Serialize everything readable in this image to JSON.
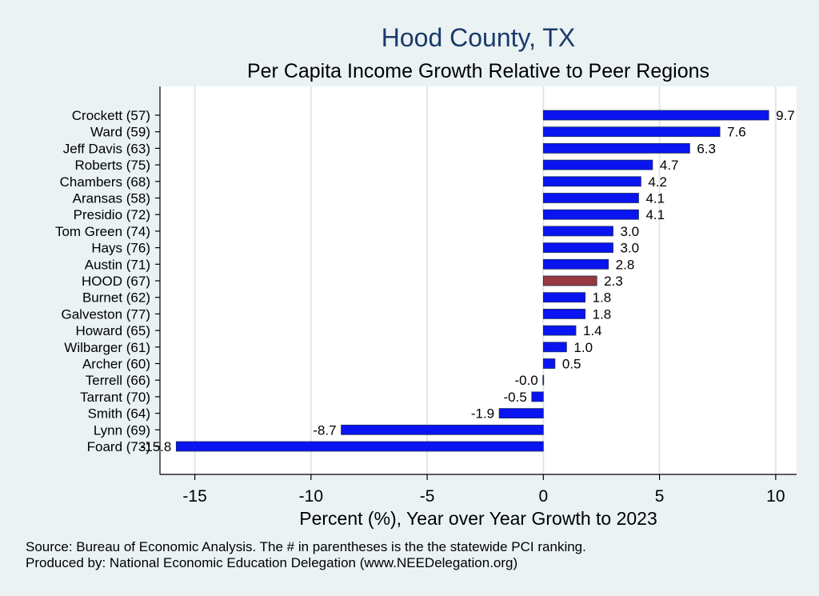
{
  "chart_data": {
    "type": "bar",
    "orientation": "horizontal",
    "title": "Hood County, TX",
    "subtitle": "Per Capita Income Growth Relative to Peer Regions",
    "xlabel": "Percent (%), Year over Year Growth to 2023",
    "xlim": [
      -16.5,
      10.9
    ],
    "xticks": [
      -15,
      -10,
      -5,
      0,
      5,
      10
    ],
    "xtick_labels": [
      "-15",
      "-10",
      "-5",
      "0",
      "5",
      "10"
    ],
    "grid": true,
    "categories": [
      "Crockett (57)",
      "Ward (59)",
      "Jeff Davis (63)",
      "Roberts (75)",
      "Chambers (68)",
      "Aransas (58)",
      "Presidio (72)",
      "Tom Green (74)",
      "Hays (76)",
      "Austin (71)",
      "HOOD (67)",
      "Burnet (62)",
      "Galveston (77)",
      "Howard (65)",
      "Wilbarger (61)",
      "Archer (60)",
      "Terrell (66)",
      "Tarrant (70)",
      "Smith (64)",
      "Lynn (69)",
      "Foard (73)"
    ],
    "values": [
      9.7,
      7.6,
      6.3,
      4.7,
      4.2,
      4.1,
      4.1,
      3.0,
      3.0,
      2.8,
      2.3,
      1.8,
      1.8,
      1.4,
      1.0,
      0.5,
      -0.02,
      -0.5,
      -1.9,
      -8.7,
      -15.8
    ],
    "value_labels": [
      "9.7",
      "7.6",
      "6.3",
      "4.7",
      "4.2",
      "4.1",
      "4.1",
      "3.0",
      "3.0",
      "2.8",
      "2.3",
      "1.8",
      "1.8",
      "1.4",
      "1.0",
      "0.5",
      "-0.0",
      "-0.5",
      "-1.9",
      "-8.7",
      "-15.8"
    ],
    "highlight_category": "HOOD (67)",
    "colors": {
      "bar": "#0a14f0",
      "highlight": "#963a3e",
      "bar_edge": "#1a2e5a",
      "title": "#1b3a6b",
      "grid": "#dde8ea",
      "background": "#eaf2f3",
      "plot_bg": "#ffffff"
    }
  },
  "notes": {
    "source": "Source: Bureau of Economic Analysis. The # in parentheses is the the statewide PCI ranking.",
    "produced": "Produced by: National Economic Education Delegation (www.NEEDelegation.org)"
  }
}
